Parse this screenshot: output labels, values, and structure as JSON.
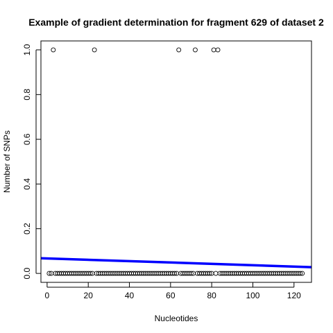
{
  "chart_data": {
    "type": "scatter",
    "title": "Example of gradient determination for fragment 629 of dataset 2",
    "xlabel": "Nucleotides",
    "ylabel": "Number of SNPs",
    "xlim": [
      -3.0,
      128.5
    ],
    "ylim": [
      -0.04,
      1.04
    ],
    "x_ticks": [
      0,
      20,
      40,
      60,
      80,
      100,
      120
    ],
    "y_ticks": [
      0.0,
      0.2,
      0.4,
      0.6,
      0.8,
      1.0
    ],
    "x_tick_labels": [
      "0",
      "20",
      "40",
      "60",
      "80",
      "100",
      "120"
    ],
    "y_tick_labels": [
      "0.0",
      "0.2",
      "0.4",
      "0.6",
      "0.8",
      "1.0"
    ],
    "points": {
      "x_range": [
        1,
        124
      ],
      "snp_positions": [
        3,
        23,
        64,
        72,
        81,
        83
      ],
      "snp_value": 1,
      "other_value": 0
    },
    "fit_line": {
      "x": [
        -3.0,
        128.5
      ],
      "y": [
        0.068,
        0.028
      ],
      "color": "#0000ff"
    },
    "grid": false
  }
}
